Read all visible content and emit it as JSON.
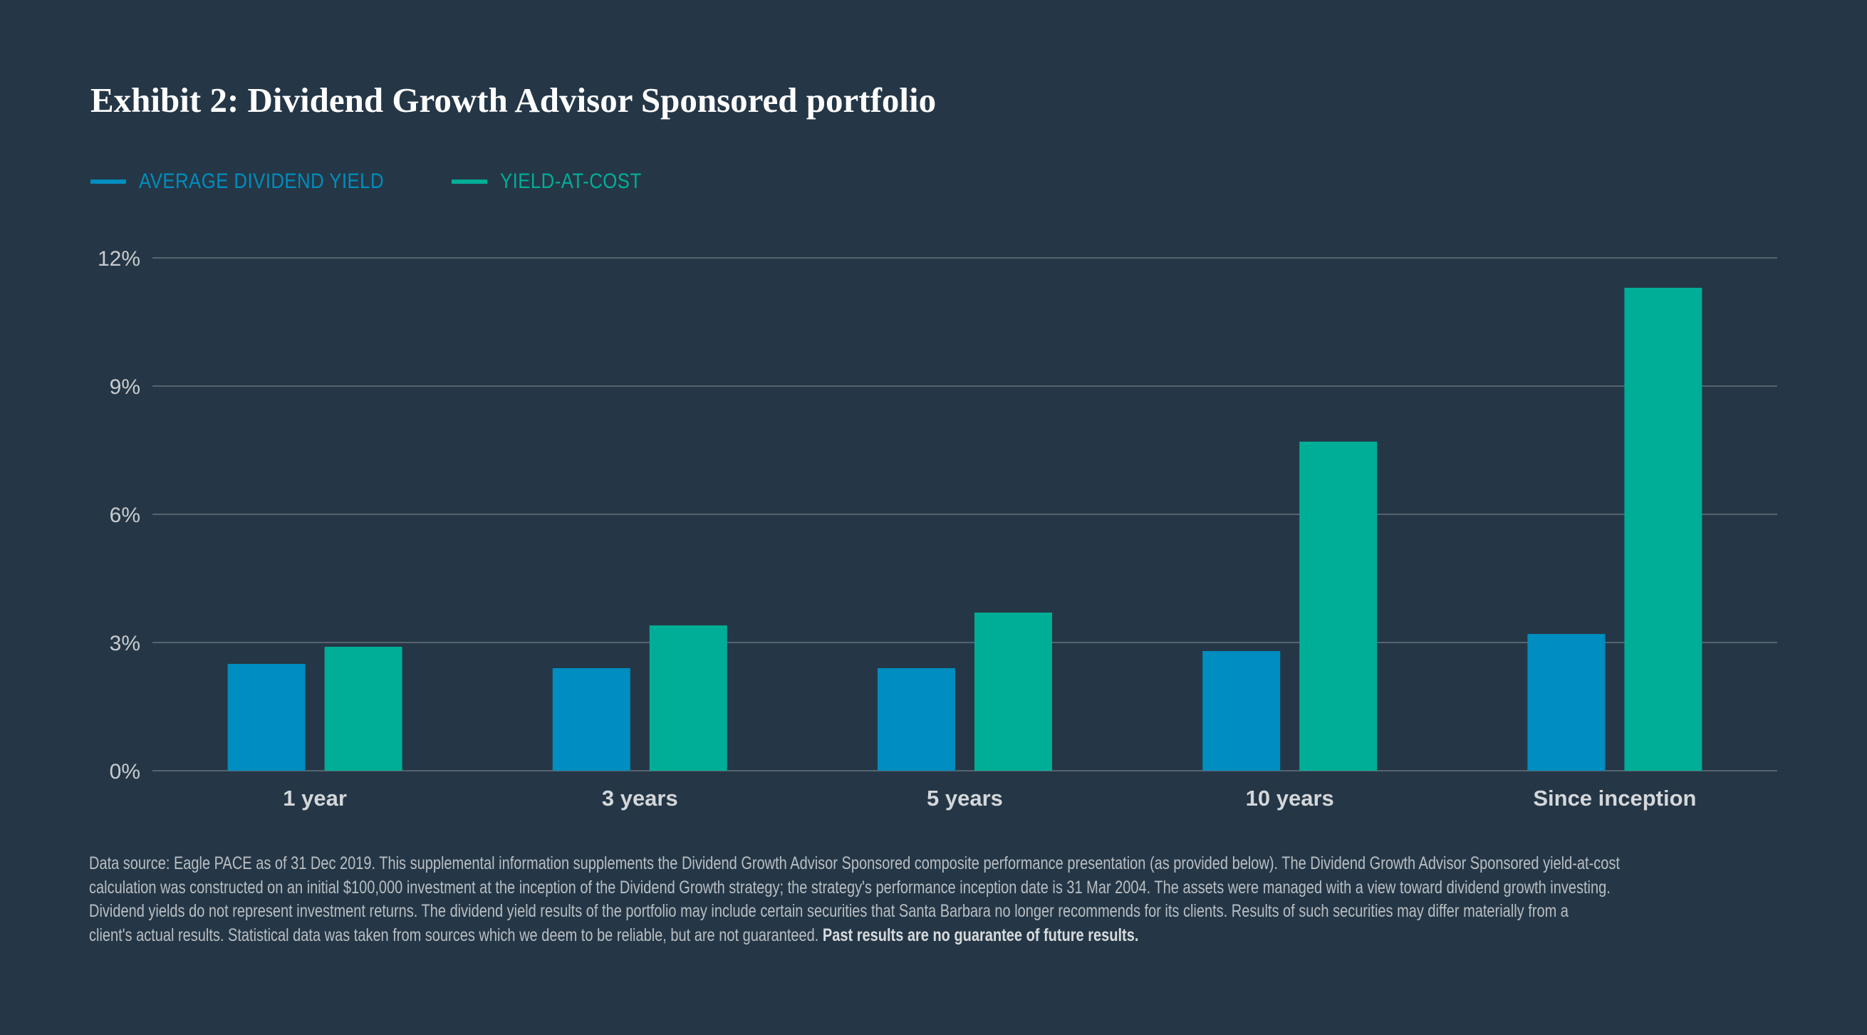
{
  "chart_data": {
    "type": "bar",
    "title": "Exhibit 2: Dividend Growth Advisor Sponsored portfolio",
    "xlabel": "",
    "ylabel": "",
    "categories": [
      "1 year",
      "3 years",
      "5 years",
      "10 years",
      "Since inception"
    ],
    "series": [
      {
        "name": "AVERAGE DIVIDEND YIELD",
        "color": "#008dbf",
        "values": [
          2.5,
          2.4,
          2.4,
          2.8,
          3.2
        ]
      },
      {
        "name": "YIELD-AT-COST",
        "color": "#00ae97",
        "values": [
          2.9,
          3.4,
          3.7,
          7.7,
          11.3
        ]
      }
    ],
    "ylim": [
      0,
      12
    ],
    "yticks": [
      0,
      3,
      6,
      9,
      12
    ],
    "ytick_labels": [
      "0%",
      "3%",
      "6%",
      "9%",
      "12%"
    ],
    "grid": true,
    "legend_position": "top-left"
  },
  "footnote": {
    "lines": [
      "Data source: Eagle PACE as of 31 Dec 2019. This supplemental information supplements the Dividend Growth Advisor Sponsored composite performance presentation (as provided below). The Dividend Growth Advisor Sponsored yield-at-cost",
      "calculation was constructed on an initial $100,000 investment at the inception of the Dividend Growth strategy; the strategy's performance inception date is 31 Mar 2004. The assets were managed with a view toward dividend growth investing.",
      "Dividend yields do not represent investment returns. The dividend yield results of the portfolio may include certain securities that Santa Barbara no longer recommends for its clients. Results of such securities may differ materially from a",
      "client's actual results. Statistical data was taken from sources which we deem to be reliable, but are not guaranteed."
    ],
    "bold": "Past results are no guarantee of future results."
  }
}
